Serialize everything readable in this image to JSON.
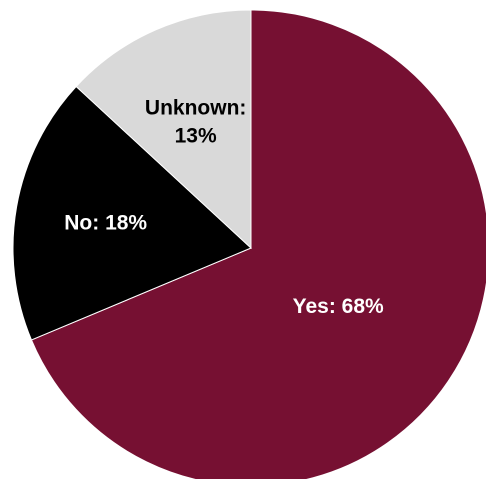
{
  "chart_data": {
    "type": "pie",
    "slices": [
      {
        "name": "Yes",
        "value": 68,
        "color": "#761032",
        "label_color": "#ffffff",
        "label_lines": [
          "Yes: 68%"
        ]
      },
      {
        "name": "No",
        "value": 18,
        "color": "#000000",
        "label_color": "#ffffff",
        "label_lines": [
          "No: 18%"
        ]
      },
      {
        "name": "Unknown",
        "value": 13,
        "color": "#d9d9d9",
        "label_color": "#000000",
        "label_lines": [
          "Unknown:",
          "13%"
        ]
      }
    ],
    "start": "12 o'clock",
    "direction": "clockwise",
    "edge_color": "#ffffff"
  }
}
